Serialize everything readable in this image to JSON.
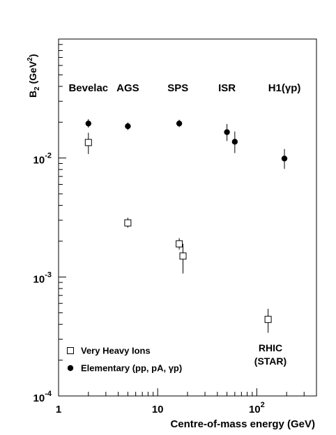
{
  "chart_data": {
    "type": "scatter",
    "xscale": "log",
    "yscale": "log",
    "xlim": [
      1,
      400
    ],
    "ylim": [
      0.0001,
      0.1
    ],
    "xlabel": "Centre-of-mass energy (GeV)",
    "ylabel": "B2 (GeV2)",
    "x_ticks": [
      {
        "value": 1,
        "label": "1"
      },
      {
        "value": 10,
        "label": "10"
      },
      {
        "value": 100,
        "label": "10",
        "exp": "2"
      }
    ],
    "y_ticks": [
      {
        "value": 0.0001,
        "label": "10",
        "exp": "-4"
      },
      {
        "value": 0.001,
        "label": "10",
        "exp": "-3"
      },
      {
        "value": 0.01,
        "label": "10",
        "exp": "-2"
      }
    ],
    "accelerators": [
      {
        "label": "Bevelac",
        "x": 2
      },
      {
        "label": "AGS",
        "x": 5
      },
      {
        "label": "SPS",
        "x": 16
      },
      {
        "label": "ISR",
        "x": 50
      },
      {
        "label": "H1(γp)",
        "x": 190
      }
    ],
    "annotation": [
      "RHIC",
      "(STAR)"
    ],
    "series": [
      {
        "name": "Very Heavy Ions",
        "marker": "open-square",
        "points": [
          {
            "x": 2.0,
            "y": 0.0135,
            "lo": 0.0108,
            "hi": 0.0163
          },
          {
            "x": 5.0,
            "y": 0.00285,
            "lo": 0.0026,
            "hi": 0.00315
          },
          {
            "x": 16.5,
            "y": 0.0019,
            "lo": 0.0017,
            "hi": 0.00212
          },
          {
            "x": 18.0,
            "y": 0.0015,
            "lo": 0.00107,
            "hi": 0.0019
          },
          {
            "x": 130,
            "y": 0.00044,
            "lo": 0.00034,
            "hi": 0.00054
          }
        ]
      },
      {
        "name": "Elementary (pp, pA, γp)",
        "marker": "filled-circle",
        "points": [
          {
            "x": 2.0,
            "y": 0.0195,
            "lo": 0.018,
            "hi": 0.0212
          },
          {
            "x": 5.0,
            "y": 0.0185,
            "lo": 0.0172,
            "hi": 0.0199
          },
          {
            "x": 16.5,
            "y": 0.0195,
            "lo": 0.0182,
            "hi": 0.021
          },
          {
            "x": 50,
            "y": 0.0165,
            "lo": 0.0139,
            "hi": 0.0193
          },
          {
            "x": 60,
            "y": 0.0137,
            "lo": 0.011,
            "hi": 0.0167
          },
          {
            "x": 190,
            "y": 0.0099,
            "lo": 0.0081,
            "hi": 0.0119
          }
        ]
      }
    ]
  }
}
